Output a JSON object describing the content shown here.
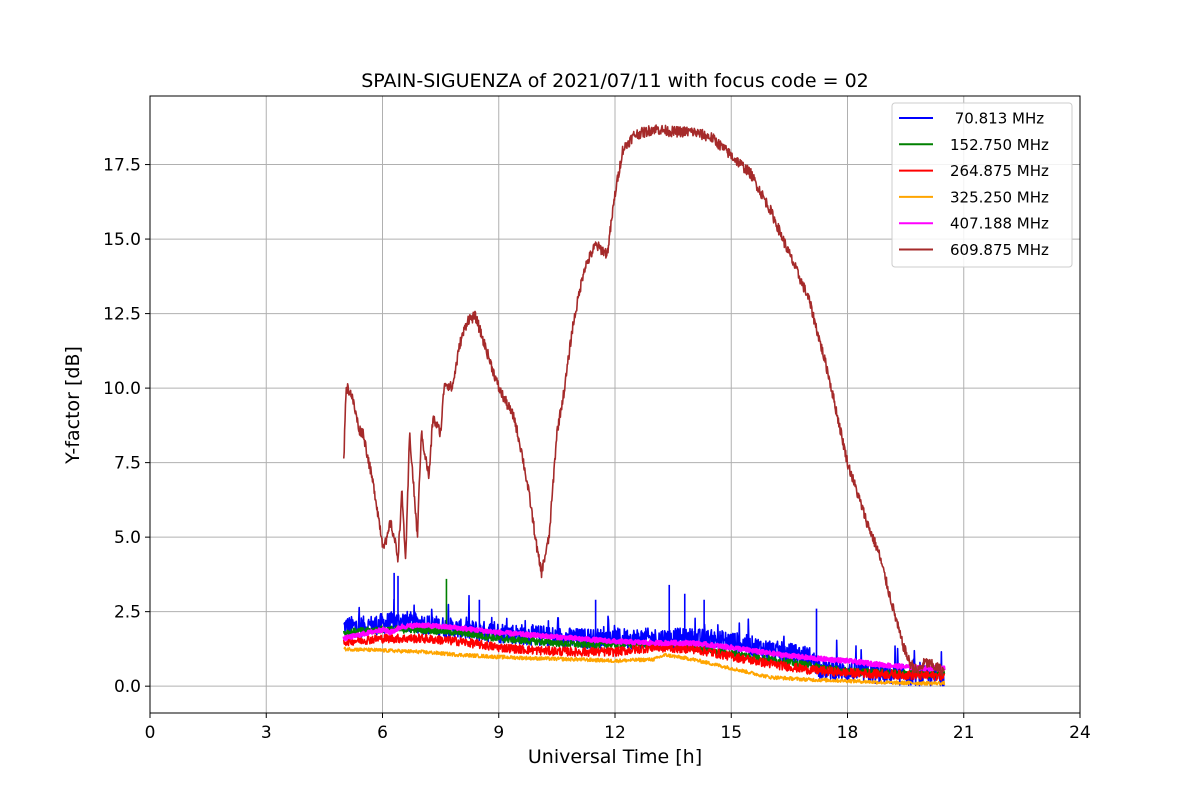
{
  "chart_data": {
    "type": "line",
    "title": "SPAIN-SIGUENZA of 2021/07/11 with focus code = 02",
    "xlabel": "Universal Time [h]",
    "ylabel": "Y-factor [dB]",
    "xlim": [
      0,
      24
    ],
    "ylim": [
      -0.9,
      19.8
    ],
    "xticks": [
      0,
      3,
      6,
      9,
      12,
      15,
      18,
      21,
      24
    ],
    "xtick_labels": [
      "0",
      "3",
      "6",
      "9",
      "12",
      "15",
      "18",
      "21",
      "24"
    ],
    "yticks": [
      0.0,
      2.5,
      5.0,
      7.5,
      10.0,
      12.5,
      15.0,
      17.5
    ],
    "ytick_labels": [
      "0.0",
      "2.5",
      "5.0",
      "7.5",
      "10.0",
      "12.5",
      "15.0",
      "17.5"
    ],
    "grid": true,
    "legend_position": "top-right",
    "series": [
      {
        "name": " 70.813 MHz",
        "color": "#0000ff",
        "noise": 0.35,
        "x": [
          5.0,
          5.5,
          6.0,
          6.5,
          7.0,
          8.0,
          9.0,
          10.0,
          11.0,
          12.0,
          13.0,
          14.0,
          15.0,
          16.0,
          17.0,
          17.3,
          18.0,
          19.0,
          20.0,
          20.5
        ],
        "y": [
          2.0,
          2.0,
          2.1,
          2.2,
          2.1,
          1.9,
          1.8,
          1.7,
          1.6,
          1.6,
          1.6,
          1.6,
          1.5,
          1.2,
          1.0,
          0.6,
          0.5,
          0.4,
          0.35,
          0.3
        ],
        "spikes": [
          [
            6.3,
            3.8
          ],
          [
            6.4,
            3.7
          ],
          [
            8.5,
            2.9
          ],
          [
            11.5,
            2.9
          ],
          [
            13.4,
            3.4
          ],
          [
            13.8,
            3.1
          ],
          [
            14.3,
            2.9
          ],
          [
            17.2,
            2.6
          ]
        ]
      },
      {
        "name": "152.750 MHz",
        "color": "#008000",
        "noise": 0.12,
        "x": [
          5.0,
          6.0,
          7.0,
          8.0,
          9.0,
          10.0,
          11.0,
          12.0,
          13.0,
          14.0,
          15.0,
          16.0,
          17.0,
          18.0,
          19.0,
          20.0,
          20.5
        ],
        "y": [
          1.8,
          1.9,
          1.9,
          1.8,
          1.6,
          1.5,
          1.4,
          1.4,
          1.4,
          1.3,
          1.1,
          0.9,
          0.7,
          0.5,
          0.45,
          0.4,
          0.4
        ],
        "spikes": [
          [
            7.65,
            3.6
          ]
        ]
      },
      {
        "name": "264.875 MHz",
        "color": "#ff0000",
        "noise": 0.15,
        "x": [
          5.0,
          6.0,
          7.0,
          8.0,
          9.0,
          10.0,
          11.0,
          12.0,
          13.0,
          14.0,
          15.0,
          16.0,
          17.0,
          18.0,
          19.0,
          20.0,
          20.5
        ],
        "y": [
          1.5,
          1.6,
          1.6,
          1.5,
          1.3,
          1.2,
          1.15,
          1.15,
          1.3,
          1.25,
          1.0,
          0.75,
          0.55,
          0.45,
          0.4,
          0.35,
          0.35
        ],
        "spikes": []
      },
      {
        "name": "325.250 MHz",
        "color": "#ffa500",
        "noise": 0.06,
        "x": [
          5.0,
          6.0,
          7.0,
          8.0,
          9.0,
          10.0,
          11.0,
          12.0,
          13.0,
          13.3,
          14.0,
          15.0,
          16.0,
          17.0,
          18.0,
          19.0,
          20.0,
          20.5
        ],
        "y": [
          1.25,
          1.2,
          1.15,
          1.05,
          0.98,
          0.93,
          0.9,
          0.85,
          0.9,
          1.05,
          0.9,
          0.6,
          0.3,
          0.22,
          0.18,
          0.12,
          0.1,
          0.1
        ],
        "spikes": []
      },
      {
        "name": "407.188 MHz",
        "color": "#ff00ff",
        "noise": 0.07,
        "x": [
          5.0,
          6.0,
          6.2,
          6.5,
          7.0,
          8.0,
          9.0,
          10.0,
          11.0,
          12.0,
          13.0,
          14.0,
          15.0,
          16.0,
          17.0,
          18.0,
          19.0,
          20.0,
          20.5
        ],
        "y": [
          1.6,
          1.9,
          1.8,
          2.0,
          2.05,
          1.95,
          1.8,
          1.7,
          1.6,
          1.5,
          1.45,
          1.45,
          1.3,
          1.1,
          0.95,
          0.85,
          0.7,
          0.6,
          0.6
        ],
        "spikes": []
      },
      {
        "name": "609.875 MHz",
        "color": "#a52a2a",
        "noise": 0.18,
        "x": [
          5.0,
          5.05,
          5.1,
          5.2,
          5.4,
          5.5,
          5.8,
          6.0,
          6.1,
          6.2,
          6.3,
          6.4,
          6.5,
          6.6,
          6.7,
          6.9,
          7.0,
          7.2,
          7.3,
          7.5,
          7.6,
          7.8,
          8.0,
          8.2,
          8.4,
          8.6,
          8.8,
          9.0,
          9.2,
          9.4,
          9.6,
          9.8,
          10.0,
          10.1,
          10.3,
          10.5,
          10.7,
          10.9,
          11.2,
          11.5,
          11.8,
          12.0,
          12.2,
          12.5,
          12.8,
          13.0,
          13.5,
          14.0,
          14.5,
          15.0,
          15.5,
          16.0,
          16.5,
          17.0,
          17.5,
          18.0,
          18.5,
          18.8,
          19.0,
          19.2,
          19.4,
          19.6,
          19.8,
          20.0,
          20.2,
          20.5
        ],
        "y": [
          7.5,
          9.8,
          10.0,
          9.8,
          8.6,
          8.5,
          6.5,
          4.8,
          4.8,
          5.5,
          5.0,
          4.3,
          6.5,
          4.2,
          8.5,
          5.0,
          8.5,
          7.0,
          9.0,
          8.5,
          10.2,
          10.0,
          11.5,
          12.3,
          12.4,
          11.6,
          10.8,
          10.0,
          9.5,
          9.0,
          7.8,
          6.3,
          4.5,
          3.8,
          5.0,
          8.5,
          10.0,
          12.0,
          14.0,
          14.8,
          14.5,
          16.5,
          18.0,
          18.5,
          18.6,
          18.7,
          18.6,
          18.6,
          18.4,
          17.8,
          17.2,
          16.0,
          14.5,
          13.0,
          10.5,
          7.5,
          5.5,
          4.5,
          3.5,
          2.5,
          1.5,
          0.8,
          0.5,
          0.8,
          0.7,
          0.5
        ],
        "spikes": []
      }
    ]
  }
}
